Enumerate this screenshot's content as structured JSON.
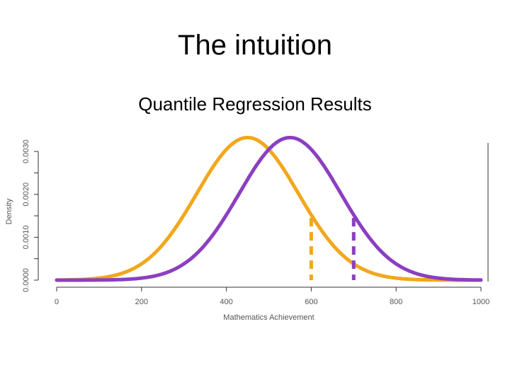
{
  "slide": {
    "title": "The intuition",
    "subtitle": "Quantile Regression Results"
  },
  "chart_data": {
    "type": "line",
    "xlabel": "Mathematics Achievement",
    "ylabel": "Density",
    "xlim": [
      0,
      1000
    ],
    "ylim": [
      0,
      0.0032
    ],
    "x_ticks": [
      0,
      200,
      400,
      600,
      800,
      1000
    ],
    "x_tick_labels": [
      "0",
      "200",
      "400",
      "600",
      "800",
      "1000"
    ],
    "y_ticks": [
      0,
      0.001,
      0.002,
      0.003
    ],
    "y_tick_labels": [
      "0.0000",
      "0.0010",
      "0.0020",
      "0.0030"
    ],
    "grid": false,
    "series": [
      {
        "mean": 450,
        "sd": 120,
        "color": "#f2a71b",
        "x": [
          0,
          100,
          200,
          300,
          400,
          450,
          500,
          600,
          700,
          800,
          900,
          1000
        ],
        "y": [
          0.0,
          0.0001,
          0.0004,
          0.0013,
          0.003,
          0.0033,
          0.003,
          0.0015,
          0.0004,
          0.0001,
          0.0,
          0.0
        ]
      },
      {
        "mean": 550,
        "sd": 120,
        "color": "#8b3fc0",
        "x": [
          0,
          100,
          200,
          300,
          400,
          500,
          550,
          600,
          700,
          800,
          900,
          1000
        ],
        "y": [
          0.0,
          0.0,
          0.0001,
          0.0004,
          0.0015,
          0.003,
          0.0033,
          0.003,
          0.0013,
          0.0004,
          0.0001,
          0.0
        ]
      }
    ],
    "quantile_markers": [
      {
        "x": 600,
        "color": "#f2a71b",
        "y_top": 0.00145
      },
      {
        "x": 700,
        "color": "#8b3fc0",
        "y_top": 0.00145
      }
    ]
  }
}
